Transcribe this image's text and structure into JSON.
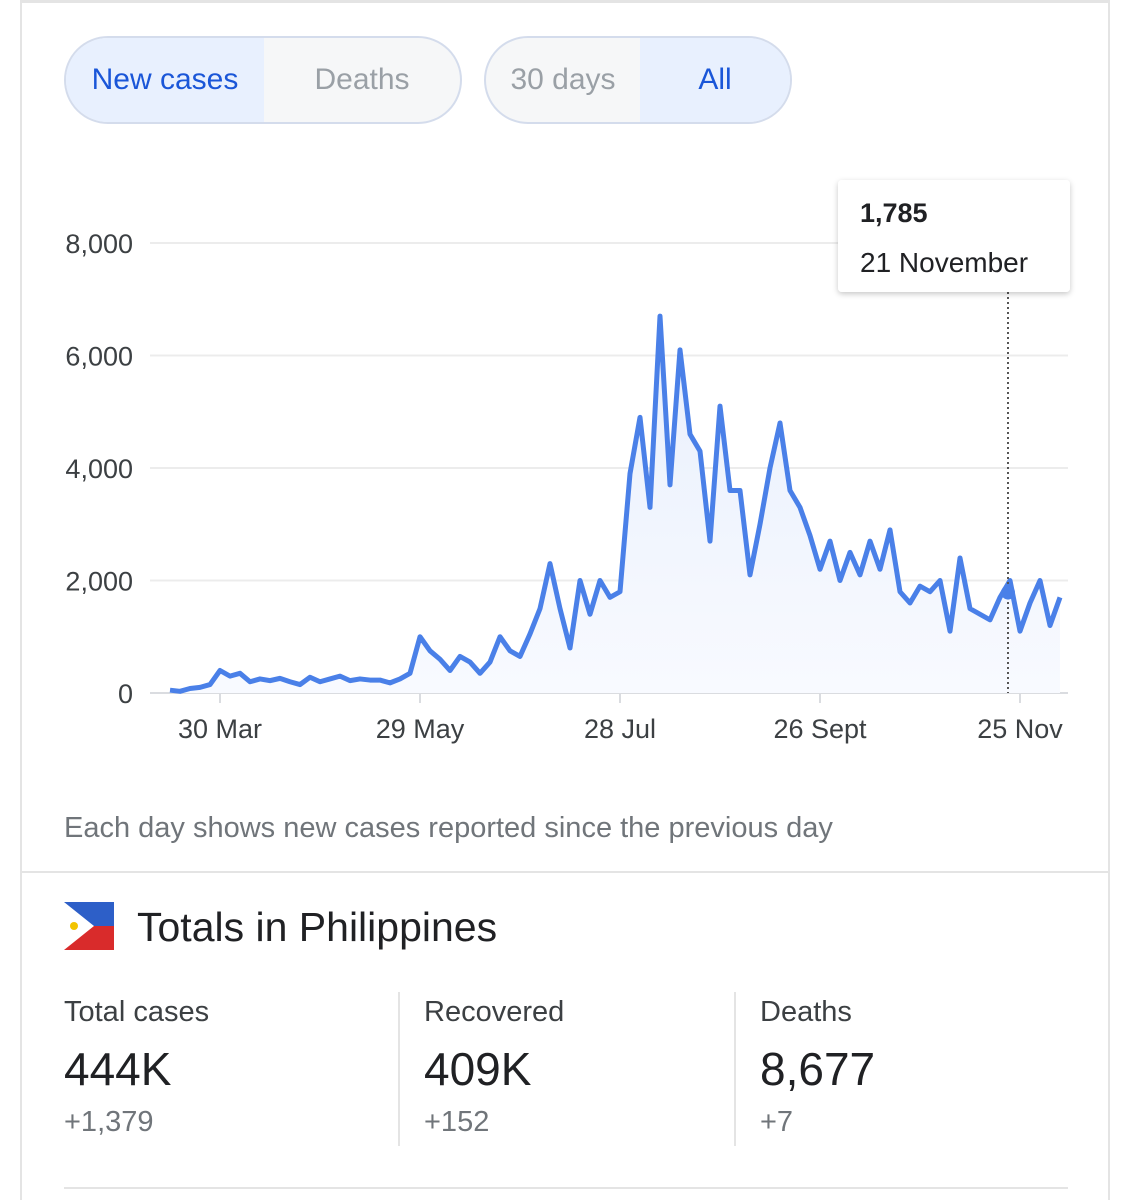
{
  "tabs": {
    "metric": [
      "New cases",
      "Deaths"
    ],
    "range": [
      "30 days",
      "All"
    ]
  },
  "chart_data": {
    "type": "line",
    "color": "#4a80e8",
    "categories": [
      null,
      null,
      null,
      null,
      null,
      "30 Mar",
      null,
      null,
      null,
      null,
      null,
      null,
      null,
      null,
      null,
      null,
      null,
      null,
      null,
      null,
      null,
      null,
      null,
      null,
      null,
      "29 May",
      null,
      null,
      null,
      null,
      null,
      null,
      null,
      null,
      null,
      null,
      null,
      null,
      null,
      null,
      null,
      null,
      null,
      null,
      null,
      "28 Jul",
      null,
      null,
      null,
      null,
      null,
      null,
      null,
      null,
      null,
      null,
      null,
      null,
      null,
      null,
      null,
      null,
      null,
      null,
      null,
      "26 Sept",
      null,
      null,
      null,
      null,
      null,
      null,
      null,
      null,
      null,
      null,
      null,
      null,
      null,
      null,
      null,
      null,
      null,
      null,
      null,
      "25 Nov",
      null,
      null,
      null,
      null
    ],
    "values": [
      50,
      30,
      80,
      100,
      150,
      400,
      300,
      350,
      200,
      250,
      220,
      260,
      200,
      150,
      280,
      200,
      250,
      300,
      220,
      250,
      230,
      230,
      180,
      250,
      350,
      1000,
      750,
      600,
      400,
      650,
      550,
      350,
      550,
      1000,
      750,
      650,
      1050,
      1500,
      2300,
      1500,
      800,
      2000,
      1400,
      2000,
      1700,
      1800,
      3900,
      4900,
      3300,
      6700,
      3700,
      6100,
      4600,
      4300,
      2700,
      5100,
      3600,
      3600,
      2100,
      3000,
      4000,
      4800,
      3600,
      3300,
      2800,
      2200,
      2700,
      2000,
      2500,
      2100,
      2700,
      2200,
      2900,
      1800,
      1600,
      1900,
      1800,
      2000,
      1100,
      2400,
      1500,
      1400,
      1300,
      1700,
      2000,
      1100,
      1600,
      2000,
      1200,
      1700
    ],
    "ylim": [
      0,
      8000
    ],
    "yticks": [
      0,
      {
        "value": 2000,
        "label": "2,000"
      },
      {
        "value": 4000,
        "label": "4,000"
      },
      {
        "value": 6000,
        "label": "6,000"
      },
      {
        "value": 8000,
        "label": "8,000"
      }
    ],
    "grid": true,
    "tooltip": {
      "value": 1785,
      "label": "1,785",
      "date": "21 November"
    }
  },
  "footnote": "Each day shows new cases reported since the previous day",
  "totals": {
    "title": "Totals in Philippines",
    "stats": [
      {
        "label": "Total cases",
        "value": "444K",
        "change": "+1,379"
      },
      {
        "label": "Recovered",
        "value": "409K",
        "change": "+152"
      },
      {
        "label": "Deaths",
        "value": "8,677",
        "change": "+7"
      }
    ]
  }
}
